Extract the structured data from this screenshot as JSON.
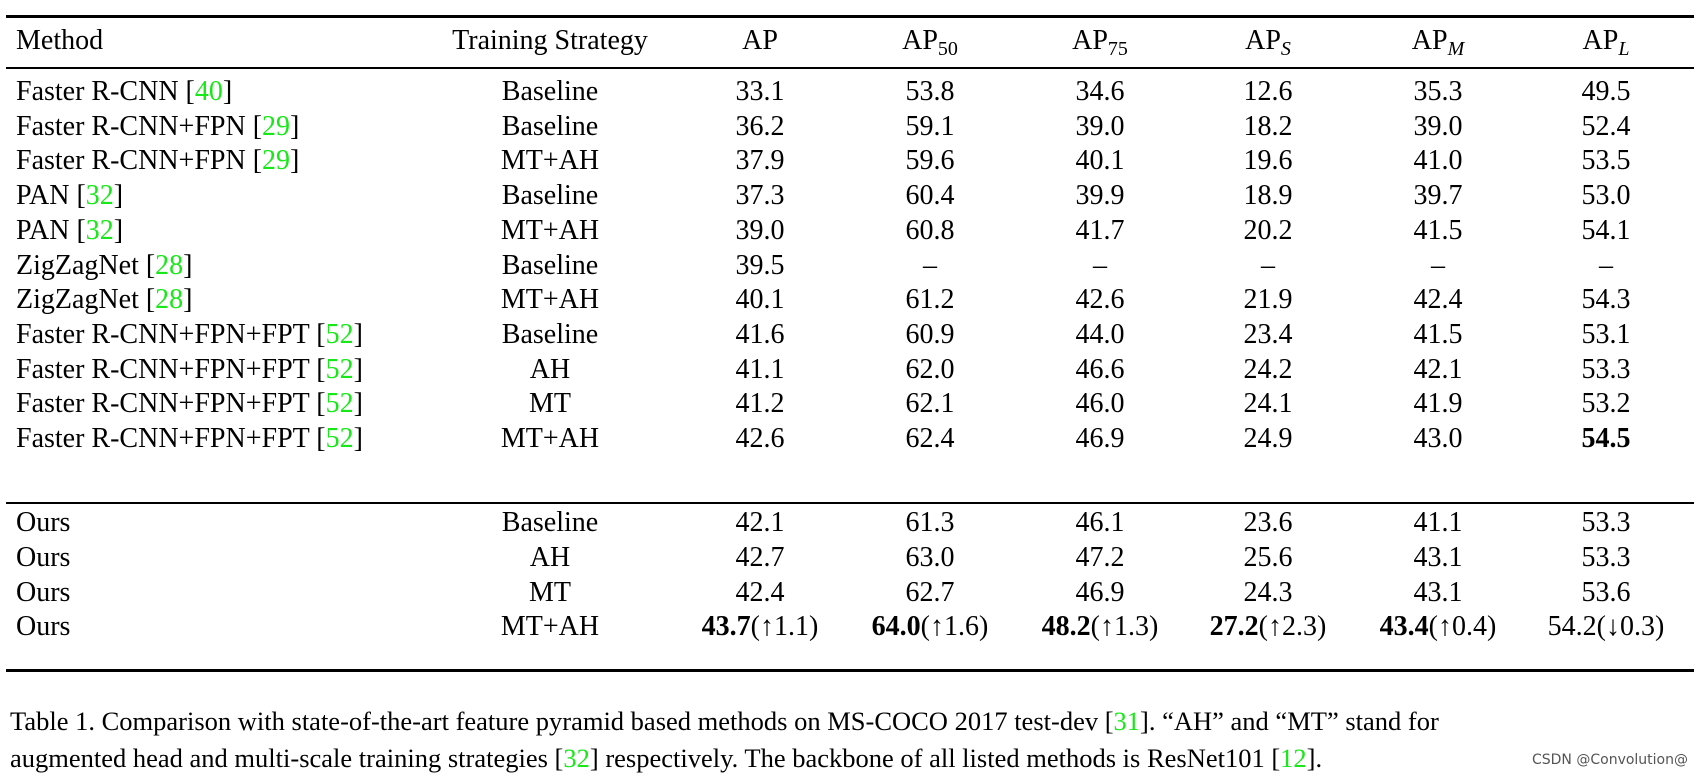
{
  "table": {
    "headers": {
      "method": "Method",
      "training_strategy": "Training Strategy",
      "ap": "AP",
      "ap50_base": "AP",
      "ap50_sub": "50",
      "ap75_base": "AP",
      "ap75_sub": "75",
      "aps_base": "AP",
      "aps_sub": "S",
      "apm_base": "AP",
      "apm_sub": "M",
      "apl_base": "AP",
      "apl_sub": "L"
    },
    "rows": [
      {
        "name": "Faster R-CNN",
        "ref": "40",
        "strategy": "Baseline",
        "ap": "33.1",
        "ap50": "53.8",
        "ap75": "34.6",
        "aps": "12.6",
        "apm": "35.3",
        "apl": "49.5"
      },
      {
        "name": "Faster R-CNN+FPN",
        "ref": "29",
        "strategy": "Baseline",
        "ap": "36.2",
        "ap50": "59.1",
        "ap75": "39.0",
        "aps": "18.2",
        "apm": "39.0",
        "apl": "52.4"
      },
      {
        "name": "Faster R-CNN+FPN",
        "ref": "29",
        "strategy": "MT+AH",
        "ap": "37.9",
        "ap50": "59.6",
        "ap75": "40.1",
        "aps": "19.6",
        "apm": "41.0",
        "apl": "53.5"
      },
      {
        "name": "PAN",
        "ref": "32",
        "strategy": "Baseline",
        "ap": "37.3",
        "ap50": "60.4",
        "ap75": "39.9",
        "aps": "18.9",
        "apm": "39.7",
        "apl": "53.0"
      },
      {
        "name": "PAN",
        "ref": "32",
        "strategy": "MT+AH",
        "ap": "39.0",
        "ap50": "60.8",
        "ap75": "41.7",
        "aps": "20.2",
        "apm": "41.5",
        "apl": "54.1"
      },
      {
        "name": "ZigZagNet",
        "ref": "28",
        "strategy": "Baseline",
        "ap": "39.5",
        "ap50": "–",
        "ap75": "–",
        "aps": "–",
        "apm": "–",
        "apl": "–"
      },
      {
        "name": "ZigZagNet",
        "ref": "28",
        "strategy": "MT+AH",
        "ap": "40.1",
        "ap50": "61.2",
        "ap75": "42.6",
        "aps": "21.9",
        "apm": "42.4",
        "apl": "54.3"
      },
      {
        "name": "Faster R-CNN+FPN+FPT",
        "ref": "52",
        "strategy": "Baseline",
        "ap": "41.6",
        "ap50": "60.9",
        "ap75": "44.0",
        "aps": "23.4",
        "apm": "41.5",
        "apl": "53.1"
      },
      {
        "name": "Faster R-CNN+FPN+FPT",
        "ref": "52",
        "strategy": "AH",
        "ap": "41.1",
        "ap50": "62.0",
        "ap75": "46.6",
        "aps": "24.2",
        "apm": "42.1",
        "apl": "53.3"
      },
      {
        "name": "Faster R-CNN+FPN+FPT",
        "ref": "52",
        "strategy": "MT",
        "ap": "41.2",
        "ap50": "62.1",
        "ap75": "46.0",
        "aps": "24.1",
        "apm": "41.9",
        "apl": "53.2"
      },
      {
        "name": "Faster R-CNN+FPN+FPT",
        "ref": "52",
        "strategy": "MT+AH",
        "ap": "42.6",
        "ap50": "62.4",
        "ap75": "46.9",
        "aps": "24.9",
        "apm": "43.0",
        "apl": "54.5"
      },
      {
        "name": "Ours",
        "strategy": "Baseline",
        "ap": "42.1",
        "ap50": "61.3",
        "ap75": "46.1",
        "aps": "23.6",
        "apm": "41.1",
        "apl": "53.3"
      },
      {
        "name": "Ours",
        "strategy": "AH",
        "ap": "42.7",
        "ap50": "63.0",
        "ap75": "47.2",
        "aps": "25.6",
        "apm": "43.1",
        "apl": "53.3"
      },
      {
        "name": "Ours",
        "strategy": "MT",
        "ap": "42.4",
        "ap50": "62.7",
        "ap75": "46.9",
        "aps": "24.3",
        "apm": "43.1",
        "apl": "53.6"
      },
      {
        "name": "Ours",
        "strategy": "MT+AH",
        "ap": "43.7",
        "ap_delta": "(↑1.1)",
        "ap50": "64.0",
        "ap50_delta": "(↑1.6)",
        "ap75": "48.2",
        "ap75_delta": "(↑1.3)",
        "aps": "27.2",
        "aps_delta": "(↑2.3)",
        "apm": "43.4",
        "apm_delta": "(↑0.4)",
        "apl": "54.2",
        "apl_delta": "(↓0.3)"
      }
    ]
  },
  "caption": {
    "line1_a": "Table 1. Comparison with state-of-the-art feature pyramid based methods on MS-COCO 2017 test-dev ",
    "line1_ref": "31",
    "line1_b": ". “AH” and “MT” stand for",
    "line2_a": "augmented head and multi-scale training strategies ",
    "line2_ref1": "32",
    "line2_b": " respectively. The backbone of all listed methods is ResNet101 ",
    "line2_ref2": "12",
    "line2_c": "."
  },
  "watermark": "CSDN @Convolution@",
  "colors": {
    "citation": "#17e817",
    "rule": "#000000",
    "text": "#000000"
  }
}
